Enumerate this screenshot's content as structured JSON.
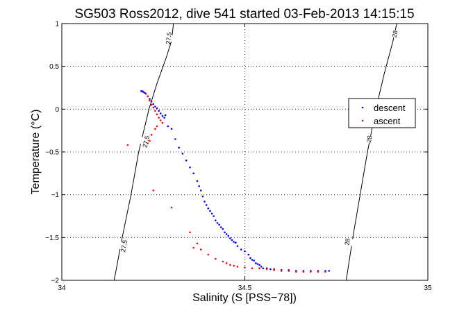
{
  "chart_data": {
    "type": "scatter",
    "title": "SG503 Ross2012, dive 541 started 03-Feb-2013 14:15:15",
    "xlabel": "Salinity (S [PSS−78])",
    "ylabel": "Temperature (°C)",
    "xlim": [
      34,
      35
    ],
    "ylim": [
      -2,
      1
    ],
    "xticks": [
      34,
      34.5,
      35
    ],
    "xtick_labels": [
      "34",
      "34.5",
      "35"
    ],
    "yticks": [
      -2,
      -1.5,
      -1,
      -0.5,
      0,
      0.5,
      1
    ],
    "ytick_labels": [
      "−2",
      "−1.5",
      "−1",
      "−0.5",
      "0",
      "0.5",
      "1"
    ],
    "grid": true,
    "legend_position": "right",
    "contours": [
      {
        "label": "27.5",
        "color": "#000000",
        "points": [
          [
            34.143,
            -2.0
          ],
          [
            34.165,
            -1.5
          ],
          [
            34.189,
            -1.0
          ],
          [
            34.21,
            -0.5
          ],
          [
            34.238,
            0.0
          ],
          [
            34.26,
            0.3
          ],
          [
            34.285,
            0.6
          ],
          [
            34.3,
            0.8
          ],
          [
            34.305,
            1.0
          ]
        ],
        "label_positions": [
          [
            34.292,
            0.83
          ],
          [
            34.23,
            -0.38
          ],
          [
            34.17,
            -1.6
          ]
        ]
      },
      {
        "label": "28",
        "color": "#000000",
        "points": [
          [
            34.777,
            -2.0
          ],
          [
            34.795,
            -1.5
          ],
          [
            34.815,
            -1.0
          ],
          [
            34.835,
            -0.5
          ],
          [
            34.858,
            0.0
          ],
          [
            34.88,
            0.4
          ],
          [
            34.905,
            0.8
          ],
          [
            34.915,
            1.0
          ]
        ],
        "label_positions": [
          [
            34.91,
            0.88
          ],
          [
            34.84,
            -0.35
          ],
          [
            34.78,
            -1.55
          ]
        ]
      }
    ],
    "series": [
      {
        "name": "descent",
        "color": "#0000ff",
        "x": [
          34.217,
          34.22,
          34.223,
          34.227,
          34.23,
          34.235,
          34.24,
          34.245,
          34.25,
          34.255,
          34.26,
          34.265,
          34.27,
          34.275,
          34.28,
          34.283,
          34.29,
          34.3,
          34.31,
          34.32,
          34.33,
          34.34,
          34.35,
          34.36,
          34.37,
          34.375,
          34.38,
          34.385,
          34.39,
          34.395,
          34.4,
          34.405,
          34.41,
          34.415,
          34.42,
          34.425,
          34.43,
          34.435,
          34.44,
          34.445,
          34.45,
          34.455,
          34.46,
          34.465,
          34.47,
          34.475,
          34.48,
          34.49,
          34.5,
          34.51,
          34.515,
          34.52,
          34.525,
          34.53,
          34.535,
          34.54,
          34.545,
          34.55,
          34.56,
          34.57,
          34.58,
          34.6,
          34.62,
          34.64,
          34.66,
          34.68,
          34.7,
          34.72,
          34.73
        ],
        "y": [
          0.21,
          0.21,
          0.2,
          0.19,
          0.18,
          0.15,
          0.12,
          0.09,
          0.06,
          0.03,
          0.01,
          -0.02,
          -0.05,
          -0.08,
          -0.1,
          -0.07,
          -0.2,
          -0.23,
          -0.35,
          -0.45,
          -0.52,
          -0.6,
          -0.68,
          -0.75,
          -0.84,
          -0.9,
          -0.95,
          -1.02,
          -1.08,
          -1.12,
          -1.16,
          -1.19,
          -1.22,
          -1.25,
          -1.3,
          -1.33,
          -1.35,
          -1.38,
          -1.4,
          -1.44,
          -1.46,
          -1.48,
          -1.51,
          -1.53,
          -1.55,
          -1.56,
          -1.6,
          -1.64,
          -1.66,
          -1.7,
          -1.74,
          -1.76,
          -1.77,
          -1.8,
          -1.81,
          -1.82,
          -1.84,
          -1.86,
          -1.86,
          -1.87,
          -1.87,
          -1.88,
          -1.88,
          -1.89,
          -1.89,
          -1.89,
          -1.89,
          -1.89,
          -1.89
        ]
      },
      {
        "name": "ascent",
        "color": "#ff0000",
        "x": [
          34.18,
          34.23,
          34.235,
          34.24,
          34.245,
          34.25,
          34.255,
          34.26,
          34.265,
          34.27,
          34.275,
          34.26,
          34.255,
          34.245,
          34.24,
          34.235,
          34.25,
          34.3,
          34.35,
          34.37,
          34.36,
          34.38,
          34.4,
          34.42,
          34.44,
          34.45,
          34.46,
          34.47,
          34.48,
          34.5,
          34.52,
          34.54,
          34.56,
          34.58,
          34.6,
          34.62,
          34.64,
          34.66,
          34.68,
          34.7,
          34.72
        ],
        "y": [
          -0.42,
          0.18,
          0.15,
          0.1,
          0.05,
          0.02,
          -0.02,
          -0.06,
          -0.1,
          -0.13,
          -0.16,
          -0.2,
          -0.23,
          -0.3,
          -0.37,
          -0.4,
          -0.95,
          -1.15,
          -1.44,
          -1.57,
          -1.62,
          -1.64,
          -1.7,
          -1.75,
          -1.78,
          -1.8,
          -1.82,
          -1.83,
          -1.84,
          -1.85,
          -1.86,
          -1.86,
          -1.87,
          -1.88,
          -1.89,
          -1.89,
          -1.9,
          -1.9,
          -1.9,
          -1.9,
          -1.9
        ]
      }
    ]
  }
}
